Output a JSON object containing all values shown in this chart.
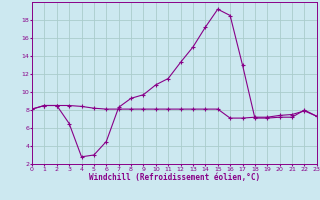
{
  "title": "",
  "xlabel": "Windchill (Refroidissement éolien,°C)",
  "ylabel": "",
  "bg_color": "#cce8f0",
  "grid_color": "#aacccc",
  "line_color": "#880088",
  "line1_x": [
    0,
    1,
    2,
    3,
    4,
    5,
    6,
    7,
    8,
    9,
    10,
    11,
    12,
    13,
    14,
    15,
    16,
    17,
    18,
    19,
    20,
    21,
    22,
    23
  ],
  "line1_y": [
    8.1,
    8.5,
    8.5,
    8.5,
    8.4,
    8.2,
    8.1,
    8.1,
    8.1,
    8.1,
    8.1,
    8.1,
    8.1,
    8.1,
    8.1,
    8.1,
    7.1,
    7.1,
    7.2,
    7.2,
    7.4,
    7.5,
    7.9,
    7.3
  ],
  "line2_x": [
    0,
    1,
    2,
    3,
    4,
    5,
    6,
    7,
    8,
    9,
    10,
    11,
    12,
    13,
    14,
    15,
    16,
    17,
    18,
    19,
    20,
    21,
    22,
    23
  ],
  "line2_y": [
    8.1,
    8.5,
    8.5,
    6.5,
    2.8,
    3.0,
    4.5,
    8.3,
    9.3,
    9.7,
    10.8,
    11.5,
    13.3,
    15.0,
    17.2,
    19.2,
    18.5,
    13.0,
    7.1,
    7.1,
    7.2,
    7.2,
    8.0,
    7.3
  ],
  "xlim": [
    0,
    23
  ],
  "ylim": [
    2,
    20
  ],
  "yticks": [
    2,
    4,
    6,
    8,
    10,
    12,
    14,
    16,
    18
  ],
  "xticks": [
    0,
    1,
    2,
    3,
    4,
    5,
    6,
    7,
    8,
    9,
    10,
    11,
    12,
    13,
    14,
    15,
    16,
    17,
    18,
    19,
    20,
    21,
    22,
    23
  ],
  "tick_fontsize": 4.5,
  "xlabel_fontsize": 5.5,
  "marker": "+"
}
